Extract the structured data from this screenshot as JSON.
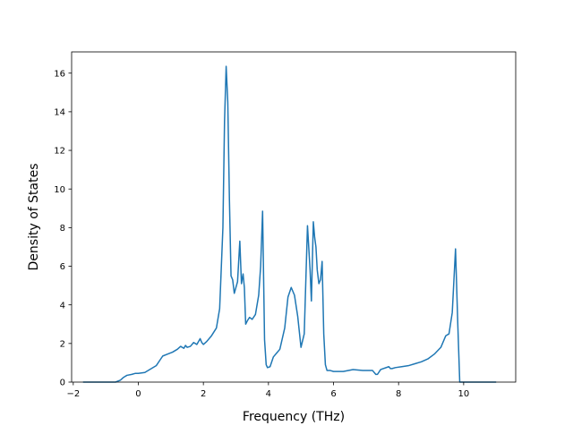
{
  "chart_data": {
    "type": "line",
    "title": "",
    "xlabel": "Frequency (THz)",
    "ylabel": "Density of States",
    "xlim": [
      -2.05,
      11.6
    ],
    "ylim": [
      0,
      17.1
    ],
    "xticks": [
      -2,
      0,
      2,
      4,
      6,
      8,
      10
    ],
    "yticks": [
      0,
      2,
      4,
      6,
      8,
      10,
      12,
      14,
      16
    ],
    "xtick_labels": [
      "−2",
      "0",
      "2",
      "4",
      "6",
      "8",
      "10"
    ],
    "ytick_labels": [
      "0",
      "2",
      "4",
      "6",
      "8",
      "10",
      "12",
      "14",
      "16"
    ],
    "grid": false,
    "legend": "none",
    "series": [
      {
        "color": "#1f77b4",
        "x": [
          -1.7,
          -0.7,
          -0.55,
          -0.45,
          -0.35,
          -0.2,
          -0.1,
          0.0,
          0.2,
          0.4,
          0.55,
          0.65,
          0.75,
          0.9,
          1.05,
          1.2,
          1.3,
          1.4,
          1.45,
          1.5,
          1.6,
          1.7,
          1.8,
          1.9,
          1.95,
          2.0,
          2.1,
          2.25,
          2.4,
          2.5,
          2.6,
          2.65,
          2.7,
          2.75,
          2.8,
          2.85,
          2.9,
          2.95,
          3.05,
          3.12,
          3.17,
          3.22,
          3.26,
          3.3,
          3.36,
          3.42,
          3.5,
          3.6,
          3.7,
          3.76,
          3.82,
          3.88,
          3.93,
          3.97,
          4.05,
          4.15,
          4.25,
          4.35,
          4.5,
          4.6,
          4.7,
          4.8,
          4.9,
          5.0,
          5.1,
          5.2,
          5.28,
          5.32,
          5.38,
          5.42,
          5.46,
          5.5,
          5.55,
          5.6,
          5.65,
          5.7,
          5.75,
          5.8,
          5.85,
          5.9,
          6.0,
          6.3,
          6.6,
          6.9,
          7.2,
          7.3,
          7.35,
          7.45,
          7.7,
          7.75,
          7.8,
          7.9,
          8.1,
          8.3,
          8.5,
          8.7,
          8.9,
          9.1,
          9.3,
          9.45,
          9.55,
          9.65,
          9.75,
          9.82,
          9.88,
          9.9,
          10.0,
          11.0
        ],
        "y": [
          0.0,
          0.0,
          0.1,
          0.25,
          0.35,
          0.4,
          0.45,
          0.45,
          0.5,
          0.7,
          0.85,
          1.1,
          1.35,
          1.45,
          1.55,
          1.7,
          1.85,
          1.75,
          1.9,
          1.8,
          1.85,
          2.05,
          1.95,
          2.25,
          2.05,
          1.95,
          2.1,
          2.4,
          2.8,
          3.8,
          8.0,
          13.5,
          16.35,
          14.5,
          9.5,
          5.5,
          5.3,
          4.6,
          5.2,
          7.3,
          5.1,
          5.6,
          4.9,
          3.0,
          3.2,
          3.35,
          3.25,
          3.5,
          4.5,
          6.0,
          8.85,
          2.2,
          0.9,
          0.75,
          0.8,
          1.3,
          1.5,
          1.7,
          2.8,
          4.4,
          4.9,
          4.5,
          3.4,
          1.8,
          2.5,
          8.1,
          5.8,
          4.2,
          8.3,
          7.5,
          7.0,
          5.8,
          5.1,
          5.3,
          6.25,
          2.5,
          0.9,
          0.6,
          0.6,
          0.6,
          0.55,
          0.55,
          0.65,
          0.6,
          0.6,
          0.4,
          0.4,
          0.65,
          0.8,
          0.7,
          0.7,
          0.75,
          0.8,
          0.85,
          0.95,
          1.05,
          1.2,
          1.45,
          1.8,
          2.4,
          2.5,
          3.6,
          6.9,
          3.0,
          0.0,
          0.0,
          0.0,
          0.0
        ]
      }
    ]
  }
}
